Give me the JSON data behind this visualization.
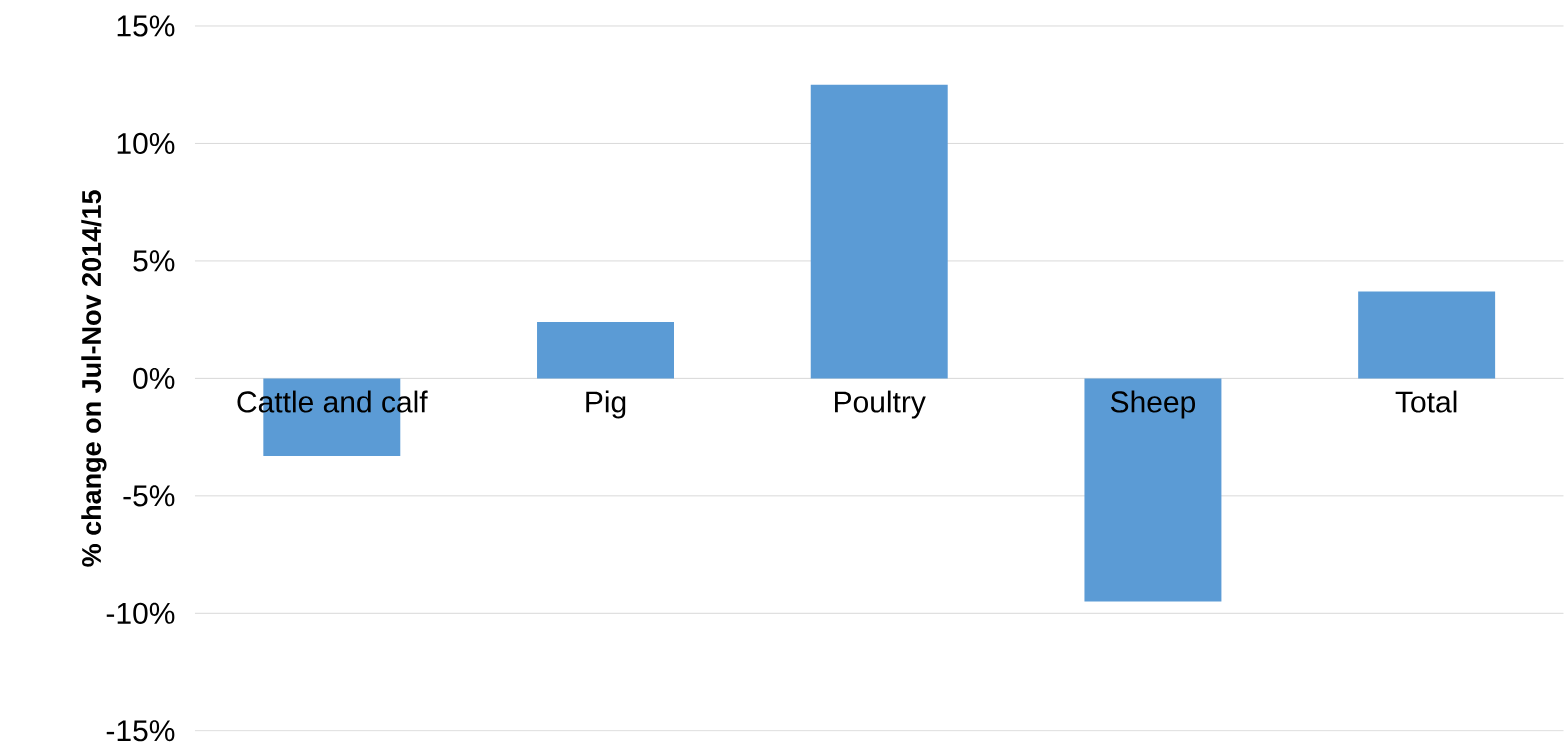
{
  "chart_data": {
    "type": "bar",
    "ylabel": "% change on Jul-Nov 2014/15",
    "categories": [
      "Cattle and calf",
      "Pig",
      "Poultry",
      "Sheep",
      "Total"
    ],
    "values": [
      -3.3,
      2.4,
      12.5,
      -9.5,
      3.7
    ],
    "color": "#5b9bd5",
    "ylim": [
      -15,
      15
    ],
    "yticks": [
      {
        "value": -15,
        "label": "-15%"
      },
      {
        "value": -10,
        "label": "-10%"
      },
      {
        "value": -5,
        "label": "-5%"
      },
      {
        "value": 0,
        "label": "0%"
      },
      {
        "value": 5,
        "label": "5%"
      },
      {
        "value": 10,
        "label": "10%"
      },
      {
        "value": 15,
        "label": "15%"
      }
    ],
    "grid": "y"
  }
}
